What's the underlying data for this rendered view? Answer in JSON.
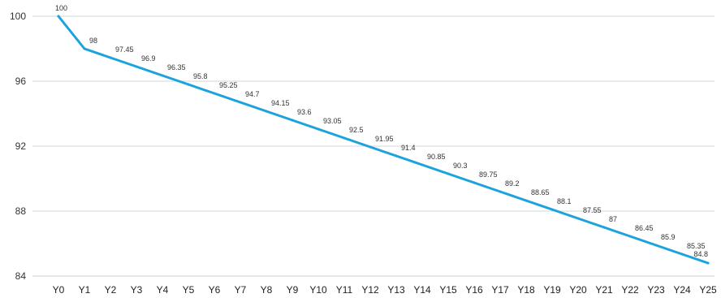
{
  "chart_data": {
    "type": "line",
    "title": "",
    "xlabel": "",
    "ylabel": "",
    "categories": [
      "Y0",
      "Y1",
      "Y2",
      "Y3",
      "Y4",
      "Y5",
      "Y6",
      "Y7",
      "Y8",
      "Y9",
      "Y10",
      "Y11",
      "Y12",
      "Y13",
      "Y14",
      "Y15",
      "Y16",
      "Y17",
      "Y18",
      "Y19",
      "Y20",
      "Y21",
      "Y22",
      "Y23",
      "Y24",
      "Y25"
    ],
    "series": [
      {
        "values": [
          100,
          98,
          97.45,
          96.9,
          96.35,
          95.8,
          95.25,
          94.7,
          94.15,
          93.6,
          93.05,
          92.5,
          91.95,
          91.4,
          90.85,
          90.3,
          89.75,
          89.2,
          88.65,
          88.1,
          87.55,
          87,
          86.45,
          85.9,
          85.35,
          84.8
        ],
        "color": "#1aa3dc"
      }
    ],
    "data_labels": [
      "100",
      "98",
      "97.45",
      "96.9",
      "96.35",
      "95.8",
      "95.25",
      "94.7",
      "94.15",
      "93.6",
      "93.05",
      "92.5",
      "91.95",
      "91.4",
      "90.85",
      "90.3",
      "89.75",
      "89.2",
      "88.65",
      "88.1",
      "87.55",
      "87",
      "86.45",
      "85.9",
      "85.35",
      "84.8"
    ],
    "ylim": [
      84,
      100
    ],
    "yticks": [
      84,
      88,
      92,
      96,
      100
    ],
    "ytick_labels": [
      "84",
      "88",
      "92",
      "96",
      "100"
    ],
    "grid": true,
    "legend": "none"
  }
}
